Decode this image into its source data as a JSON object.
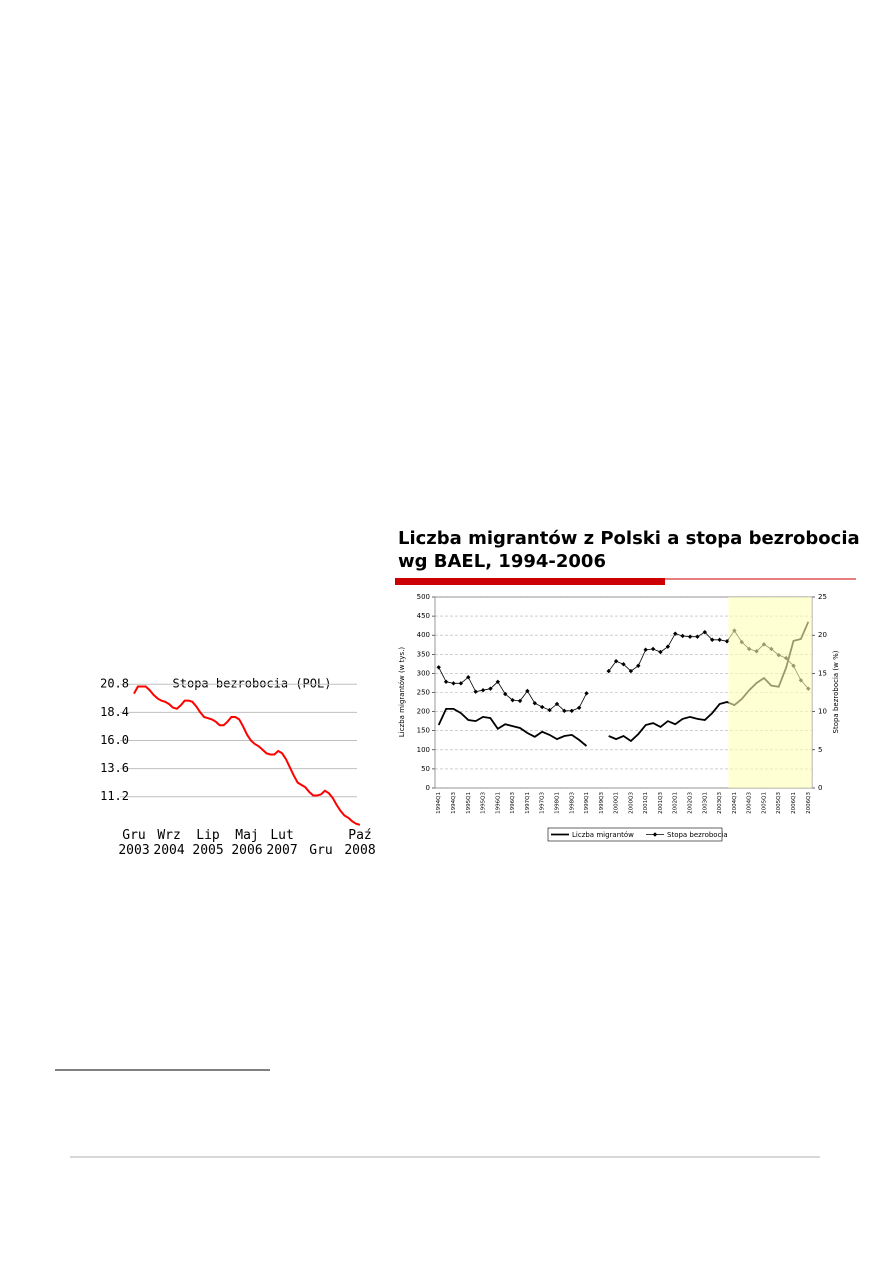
{
  "chart_data": [
    {
      "type": "line",
      "title": "Stopa bezrobocia (POL)",
      "color": "#ff0000",
      "grid": true,
      "categories": [
        "Gru\n2003",
        null,
        null,
        null,
        null,
        null,
        null,
        null,
        null,
        "Wrz\n2004",
        null,
        null,
        null,
        null,
        null,
        null,
        null,
        null,
        null,
        "Lip\n2005",
        null,
        null,
        null,
        null,
        null,
        null,
        null,
        null,
        null,
        "Maj\n2006",
        null,
        null,
        null,
        null,
        null,
        null,
        null,
        null,
        "Lut\n2007",
        null,
        null,
        null,
        null,
        null,
        null,
        null,
        null,
        null,
        "Gru",
        null,
        null,
        null,
        null,
        null,
        null,
        null,
        null,
        null,
        "Paź\n2008"
      ],
      "values": [
        20.0,
        20.6,
        20.6,
        20.6,
        20.3,
        19.9,
        19.6,
        19.4,
        19.3,
        19.1,
        18.8,
        18.7,
        19.0,
        19.4,
        19.4,
        19.3,
        18.9,
        18.4,
        18.0,
        17.9,
        17.8,
        17.6,
        17.3,
        17.3,
        17.6,
        18.0,
        18.0,
        17.8,
        17.2,
        16.5,
        16.0,
        15.7,
        15.5,
        15.2,
        14.9,
        14.8,
        14.8,
        15.1,
        14.9,
        14.4,
        13.7,
        13.0,
        12.4,
        12.2,
        12.0,
        11.6,
        11.3,
        11.3,
        11.4,
        11.7,
        11.5,
        11.1,
        10.5,
        10.0,
        9.6,
        9.4,
        9.1,
        8.9,
        8.8
      ],
      "ylim": [
        8.7,
        21.5
      ],
      "yticks": [
        20.8,
        18.4,
        {
          "value": 16,
          "label": "16.0"
        },
        13.6,
        11.2
      ]
    },
    {
      "type": "line",
      "title": "Liczba migrantów z Polski a stopa bezrobocia wg BAEL, 1994-2006",
      "ylabel": "Liczba migrantów (w tys.)",
      "y2label": "Stopa bezrobocia (w %)",
      "grid": true,
      "categories": [
        "1994Q1",
        null,
        "1994Q3",
        null,
        "1995Q1",
        null,
        "1995Q3",
        null,
        "1996Q1",
        null,
        "1996Q3",
        null,
        "1997Q1",
        null,
        "1997Q3",
        null,
        "1998Q1",
        null,
        "1998Q3",
        null,
        "1999Q1",
        null,
        "1999Q3",
        null,
        "2000Q1",
        null,
        "2000Q3",
        null,
        "2001Q1",
        null,
        "2001Q3",
        null,
        "2002Q1",
        null,
        "2002Q3",
        null,
        "2003Q1",
        null,
        "2003Q3",
        null,
        "2004Q1",
        null,
        "2004Q3",
        null,
        "2005Q1",
        null,
        "2005Q3",
        null,
        "2006Q1",
        null,
        "2006Q3"
      ],
      "series": [
        {
          "name": "Liczba migrantów",
          "color": "#000000",
          "values": [
            165,
            207,
            207,
            196,
            178,
            175,
            186,
            183,
            155,
            167,
            162,
            157,
            144,
            134,
            147,
            139,
            128,
            136,
            139,
            126,
            110,
            null,
            null,
            136,
            128,
            136,
            123,
            141,
            165,
            170,
            160,
            175,
            167,
            181,
            186,
            181,
            178,
            196,
            220,
            225,
            217,
            233,
            256,
            275,
            288,
            268,
            265,
            315,
            385,
            390,
            435
          ]
        },
        {
          "name": "Stopa bezrobocia",
          "color": "#000000",
          "axis": "y2",
          "values": [
            15.8,
            13.9,
            13.7,
            13.7,
            14.5,
            12.6,
            12.8,
            13.0,
            13.9,
            12.3,
            11.5,
            11.4,
            12.7,
            11.1,
            10.6,
            10.2,
            11.0,
            10.1,
            10.1,
            10.5,
            12.4,
            null,
            null,
            15.3,
            16.6,
            16.2,
            15.3,
            16.0,
            18.1,
            18.2,
            17.8,
            18.5,
            20.2,
            19.9,
            19.8,
            19.8,
            20.4,
            19.4,
            19.4,
            19.2,
            20.6,
            19.1,
            18.2,
            17.9,
            18.8,
            18.2,
            17.4,
            17.0,
            16.0,
            14.1,
            13.0
          ]
        }
      ],
      "ylim": [
        0,
        500
      ],
      "yticks": [
        0,
        50,
        100,
        150,
        200,
        250,
        300,
        350,
        400,
        450,
        500
      ],
      "y2lim": [
        0,
        25
      ],
      "y2ticks": [
        0,
        5,
        10,
        15,
        20,
        25
      ]
    }
  ]
}
